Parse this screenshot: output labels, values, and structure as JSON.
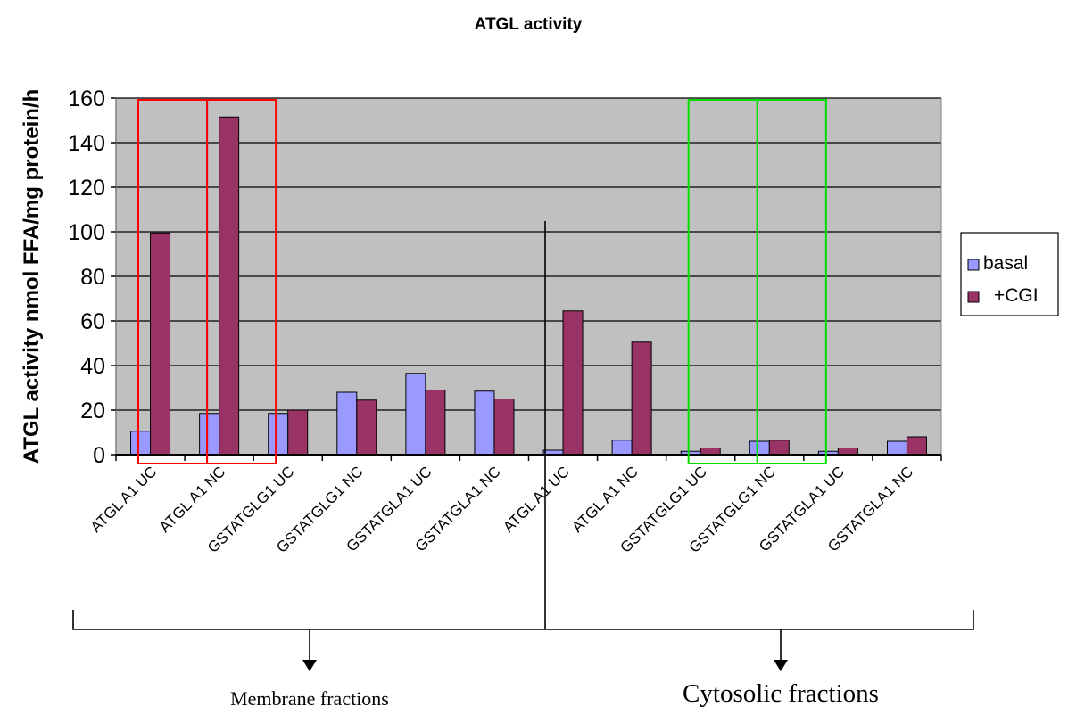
{
  "chart_data": {
    "type": "bar",
    "title": "ATGL activity",
    "ylabel": "ATGL activity nmol FFA/mg protein/h",
    "xlabel": "",
    "ylim": [
      0,
      160
    ],
    "yticks": [
      0,
      20,
      40,
      60,
      80,
      100,
      120,
      140,
      160
    ],
    "grid": true,
    "legend_placement": "right",
    "categories": [
      "ATGL A1 UC",
      "ATGL A1 NC",
      "GSTATGLG1 UC",
      "GSTATGLG1 NC",
      "GSTATGLA1 UC",
      "GSTATGLA1 NC",
      "ATGL A1 UC",
      "ATGL A1 NC",
      "GSTATGLG1 UC",
      "GSTATGLG1 NC",
      "GSTATGLA1 UC",
      "GSTATGLA1 NC"
    ],
    "series": [
      {
        "name": "basal",
        "color": "#9999FF",
        "values": [
          10.5,
          18.5,
          18.5,
          28,
          36.5,
          28.5,
          2,
          6.5,
          1.5,
          6,
          1.5,
          6
        ]
      },
      {
        "name": "+CGI",
        "color": "#993366",
        "values": [
          99.5,
          151.5,
          20,
          24.5,
          29,
          25,
          64.5,
          50.5,
          3,
          6.5,
          3,
          8
        ]
      }
    ],
    "groups": [
      {
        "label": "Membrane fractions",
        "start": 0,
        "end": 5
      },
      {
        "label": "Cytosolic fractions",
        "start": 6,
        "end": 11
      }
    ],
    "highlight_boxes": [
      {
        "categories": [
          0
        ],
        "color": "#FF0000"
      },
      {
        "categories": [
          1
        ],
        "color": "#FF0000"
      },
      {
        "categories": [
          8
        ],
        "color": "#00DD00"
      },
      {
        "categories": [
          9
        ],
        "color": "#00DD00"
      }
    ],
    "plot_bg_color": "#C0C0C0"
  }
}
